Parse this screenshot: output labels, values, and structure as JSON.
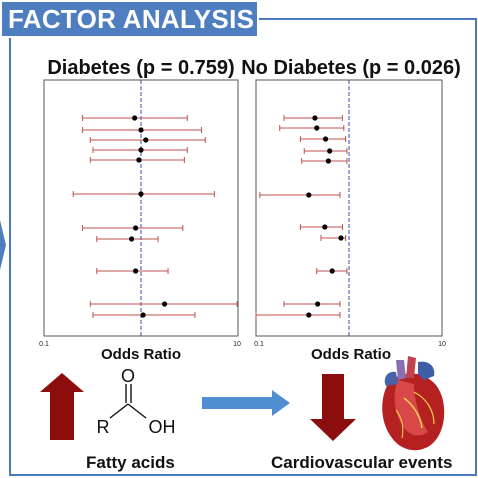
{
  "banner": {
    "title": "FACTOR ANALYSIS"
  },
  "colors": {
    "accent": "#4f7ec0",
    "ci": "#c0504d",
    "ref": "#3b46c8",
    "arrow_red": "#8b0d0d",
    "arrow_blue": "#4f8fd0"
  },
  "chart_data": [
    {
      "type": "scatter",
      "title": "Diabetes (p = 0.759)",
      "xlabel": "Odds Ratio",
      "xscale": "log",
      "xlim": [
        0.1,
        10
      ],
      "xticks": [
        "0.1",
        "10"
      ],
      "reference_line": 1,
      "grid": false,
      "points": [
        {
          "or": 0.86,
          "lo": 0.25,
          "hi": 3.0
        },
        {
          "or": 1.0,
          "lo": 0.25,
          "hi": 4.2
        },
        {
          "or": 1.12,
          "lo": 0.3,
          "hi": 4.6
        },
        {
          "or": 1.0,
          "lo": 0.32,
          "hi": 3.0
        },
        {
          "or": 0.95,
          "lo": 0.3,
          "hi": 2.8
        },
        {
          "or": 1.0,
          "lo": 0.2,
          "hi": 5.7
        },
        {
          "or": 0.88,
          "lo": 0.25,
          "hi": 2.7
        },
        {
          "or": 0.8,
          "lo": 0.35,
          "hi": 1.5
        },
        {
          "or": 0.88,
          "lo": 0.35,
          "hi": 1.9
        },
        {
          "or": 1.75,
          "lo": 0.3,
          "hi": 9.8
        },
        {
          "or": 1.05,
          "lo": 0.32,
          "hi": 3.6
        }
      ]
    },
    {
      "type": "scatter",
      "title": "No Diabetes (p = 0.026)",
      "xlabel": "Odds Ratio",
      "xscale": "log",
      "xlim": [
        0.1,
        10
      ],
      "xticks": [
        "0.1",
        "10"
      ],
      "reference_line": 1,
      "grid": false,
      "points": [
        {
          "or": 0.43,
          "lo": 0.2,
          "hi": 0.85
        },
        {
          "or": 0.45,
          "lo": 0.18,
          "hi": 0.88
        },
        {
          "or": 0.56,
          "lo": 0.3,
          "hi": 0.92
        },
        {
          "or": 0.62,
          "lo": 0.33,
          "hi": 0.95
        },
        {
          "or": 0.6,
          "lo": 0.31,
          "hi": 0.95
        },
        {
          "or": 0.37,
          "lo": 0.11,
          "hi": 0.8
        },
        {
          "or": 0.55,
          "lo": 0.3,
          "hi": 0.85
        },
        {
          "or": 0.82,
          "lo": 0.5,
          "hi": 0.92
        },
        {
          "or": 0.66,
          "lo": 0.45,
          "hi": 0.95
        },
        {
          "or": 0.46,
          "lo": 0.2,
          "hi": 0.8
        },
        {
          "or": 0.37,
          "lo": 0.1,
          "hi": 0.8
        }
      ]
    }
  ],
  "bottom": {
    "fatty_label": "Fatty acids",
    "cardio_label": "Cardiovascular events",
    "molecule": {
      "o": "O",
      "r": "R",
      "oh": "OH"
    }
  }
}
